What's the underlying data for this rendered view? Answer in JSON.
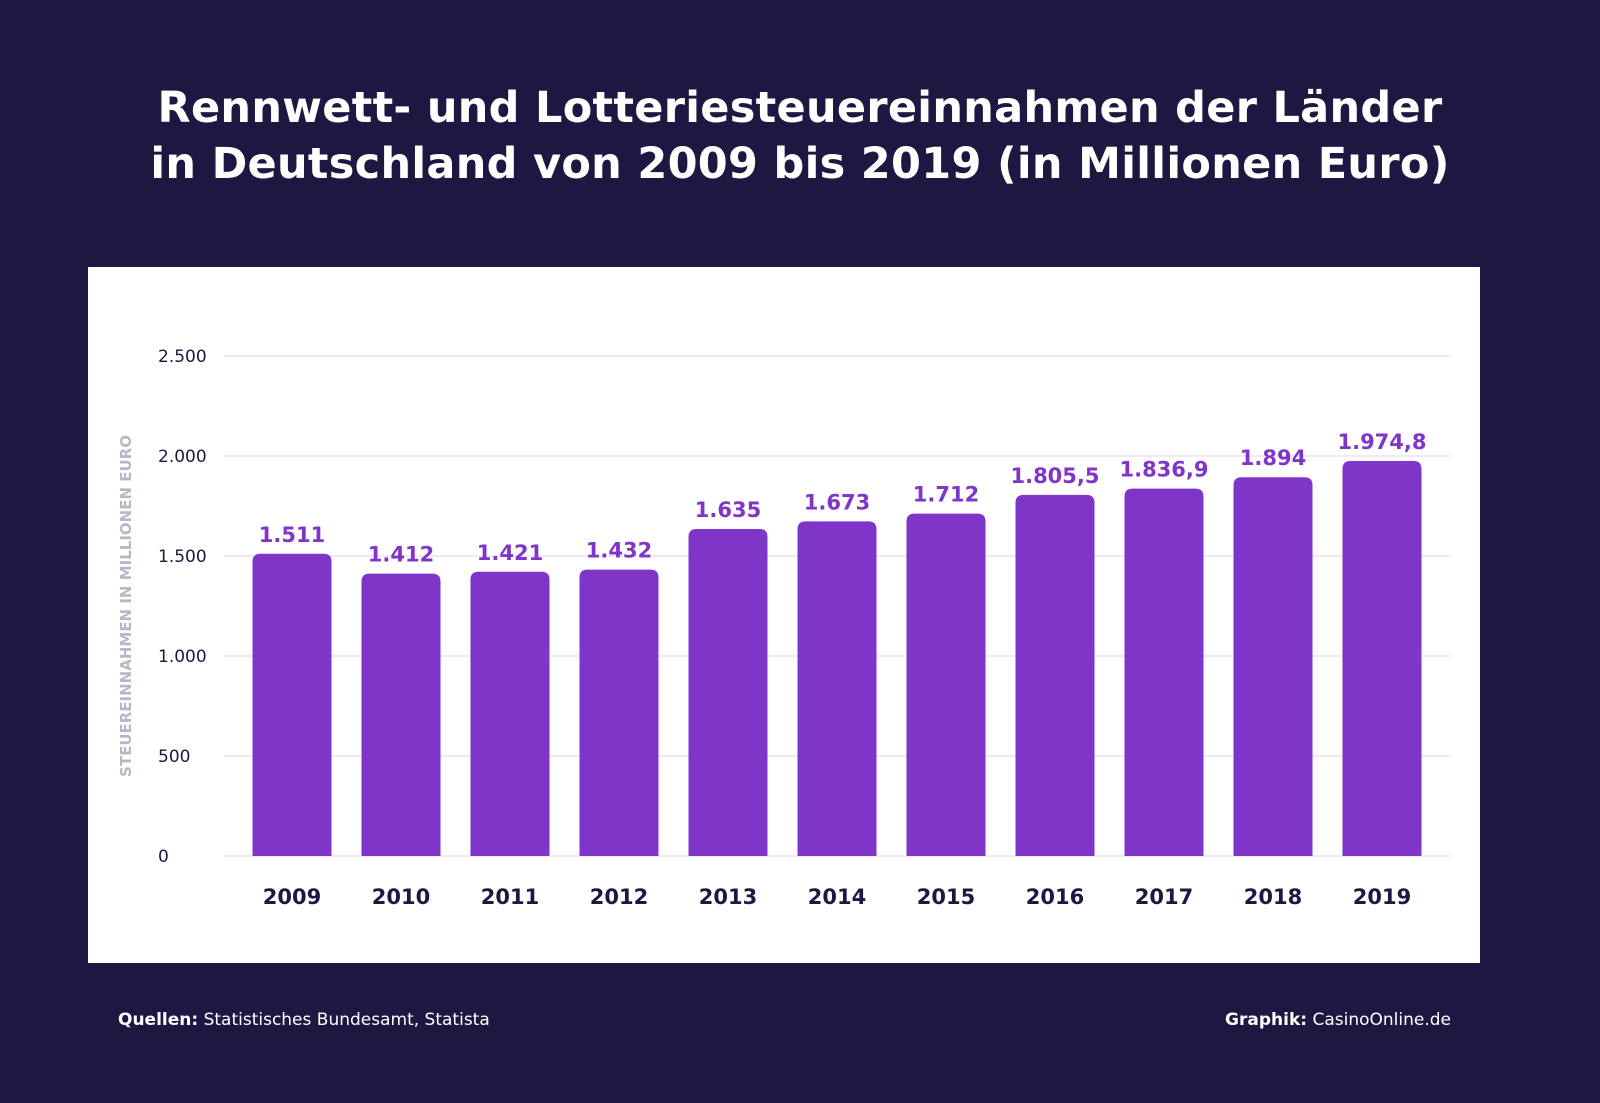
{
  "title_line1": "Rennwett- und Lotteriesteuereinnahmen der Länder",
  "title_line2": "in Deutschland von 2009 bis 2019 (in Millionen Euro)",
  "colors": {
    "background": "#1d1842",
    "bar": "#8035c9",
    "label": "#8035c9",
    "grid": "#efe9f8",
    "tick": "#1d1842",
    "ylabel": "#b9b6c6"
  },
  "chart_data": {
    "type": "bar",
    "title": "Rennwett- und Lotteriesteuereinnahmen der Länder in Deutschland von 2009 bis 2019 (in Millionen Euro)",
    "xlabel": "",
    "ylabel": "STEUEREINNAHMEN IN MILLIONEN EURO",
    "categories": [
      "2009",
      "2010",
      "2011",
      "2012",
      "2013",
      "2014",
      "2015",
      "2016",
      "2017",
      "2018",
      "2019"
    ],
    "values": [
      1511,
      1412,
      1421,
      1432,
      1635,
      1673,
      1712,
      1805.5,
      1836.9,
      1894,
      1974.8
    ],
    "data_labels": [
      "1.511",
      "1.412",
      "1.421",
      "1.432",
      "1.635",
      "1.673",
      "1.712",
      "1.805,5",
      "1.836,9",
      "1.894",
      "1.974,8"
    ],
    "ylim": [
      0,
      2500
    ],
    "yticks": [
      0,
      500,
      1000,
      1500,
      2000,
      2500
    ],
    "ytick_labels": [
      "0",
      "500",
      "1.000",
      "1.500",
      "2.000",
      "2.500"
    ],
    "grid": true
  },
  "footer": {
    "source_label": "Quellen:",
    "source_text": " Statistisches Bundesamt, Statista",
    "graphic_label": "Graphik:",
    "graphic_text": " CasinoOnline.de"
  }
}
